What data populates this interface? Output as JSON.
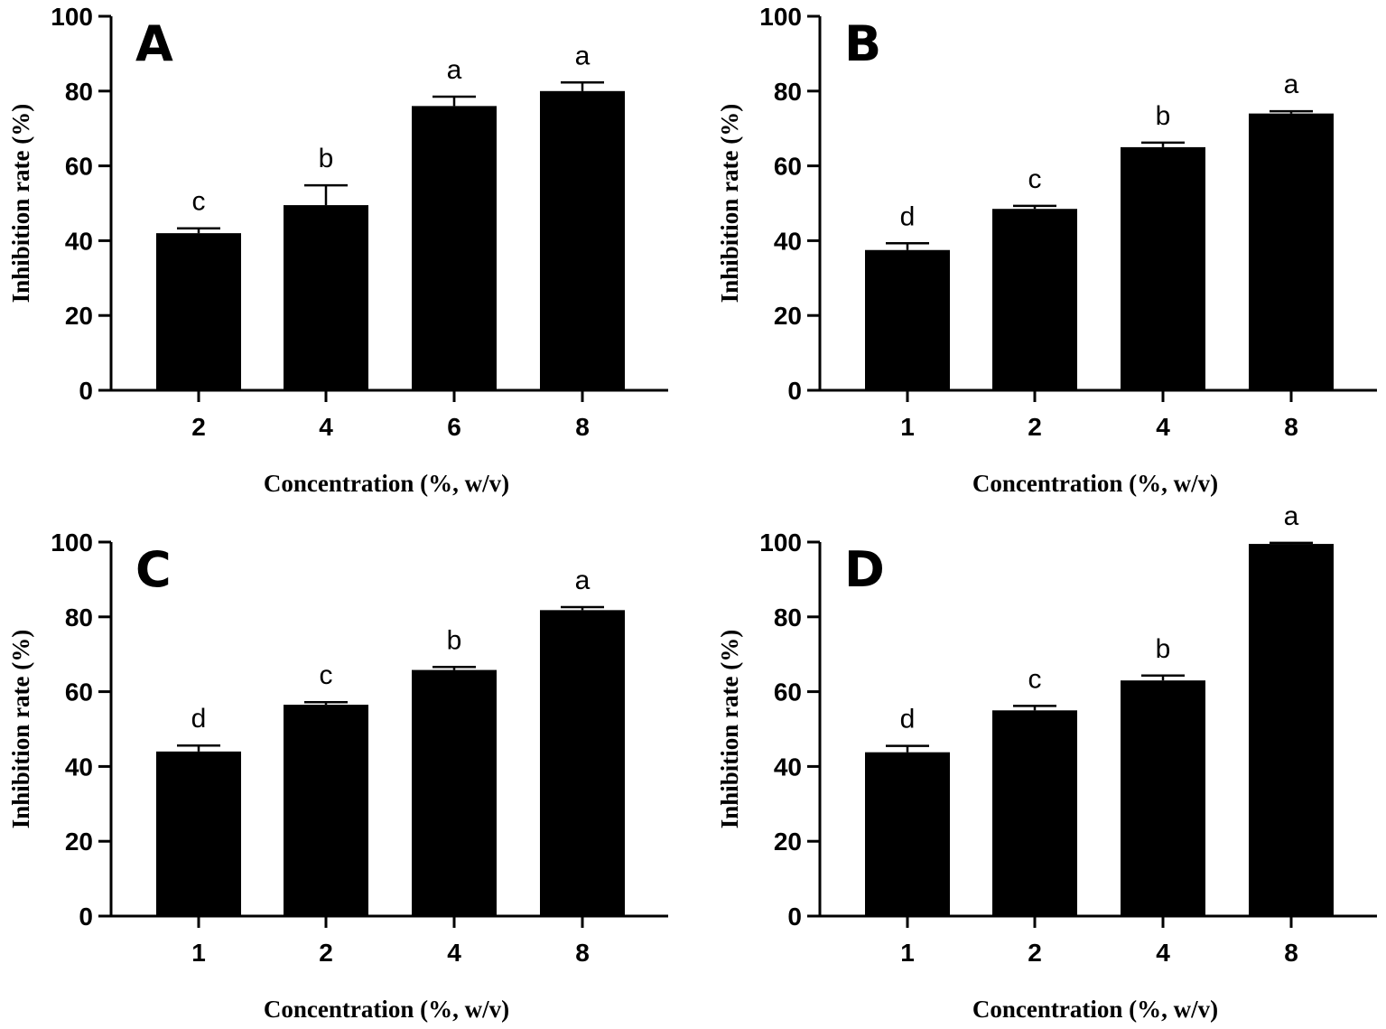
{
  "chart_data": [
    {
      "type": "bar",
      "panel": "A",
      "categories": [
        "2",
        "4",
        "6",
        "8"
      ],
      "values": [
        42,
        49.5,
        76,
        80
      ],
      "errors": [
        1.3,
        5.3,
        2.5,
        2.3
      ],
      "significance": [
        "c",
        "b",
        "a",
        "a"
      ],
      "xlabel": "Concentration (%, w/v)",
      "ylabel": "Inhibition rate (%)",
      "ylim": [
        0,
        100
      ],
      "yticks": [
        "0",
        "20",
        "40",
        "60",
        "80",
        "100"
      ]
    },
    {
      "type": "bar",
      "panel": "B",
      "categories": [
        "1",
        "2",
        "4",
        "8"
      ],
      "values": [
        37.5,
        48.5,
        65,
        74
      ],
      "errors": [
        1.8,
        0.8,
        1.2,
        0.6
      ],
      "significance": [
        "d",
        "c",
        "b",
        "a"
      ],
      "xlabel": "Concentration (%, w/v)",
      "ylabel": "Inhibition rate (%)",
      "ylim": [
        0,
        100
      ],
      "yticks": [
        "0",
        "20",
        "40",
        "60",
        "80",
        "100"
      ]
    },
    {
      "type": "bar",
      "panel": "C",
      "categories": [
        "1",
        "2",
        "4",
        "8"
      ],
      "values": [
        44,
        56.5,
        65.8,
        81.8
      ],
      "errors": [
        1.6,
        0.7,
        0.8,
        0.8
      ],
      "significance": [
        "d",
        "c",
        "b",
        "a"
      ],
      "xlabel": "Concentration (%, w/v)",
      "ylabel": "Inhibition rate (%)",
      "ylim": [
        0,
        100
      ],
      "yticks": [
        "0",
        "20",
        "40",
        "60",
        "80",
        "100"
      ]
    },
    {
      "type": "bar",
      "panel": "D",
      "categories": [
        "1",
        "2",
        "4",
        "8"
      ],
      "values": [
        43.8,
        55,
        63,
        99.5
      ],
      "errors": [
        1.7,
        1.2,
        1.3,
        0.3
      ],
      "significance": [
        "d",
        "c",
        "b",
        "a"
      ],
      "xlabel": "Concentration (%, w/v)",
      "ylabel": "Inhibition rate (%)",
      "ylim": [
        0,
        100
      ],
      "yticks": [
        "0",
        "20",
        "40",
        "60",
        "80",
        "100"
      ]
    }
  ],
  "colors": {
    "bar": "#000000",
    "axis": "#000000"
  }
}
